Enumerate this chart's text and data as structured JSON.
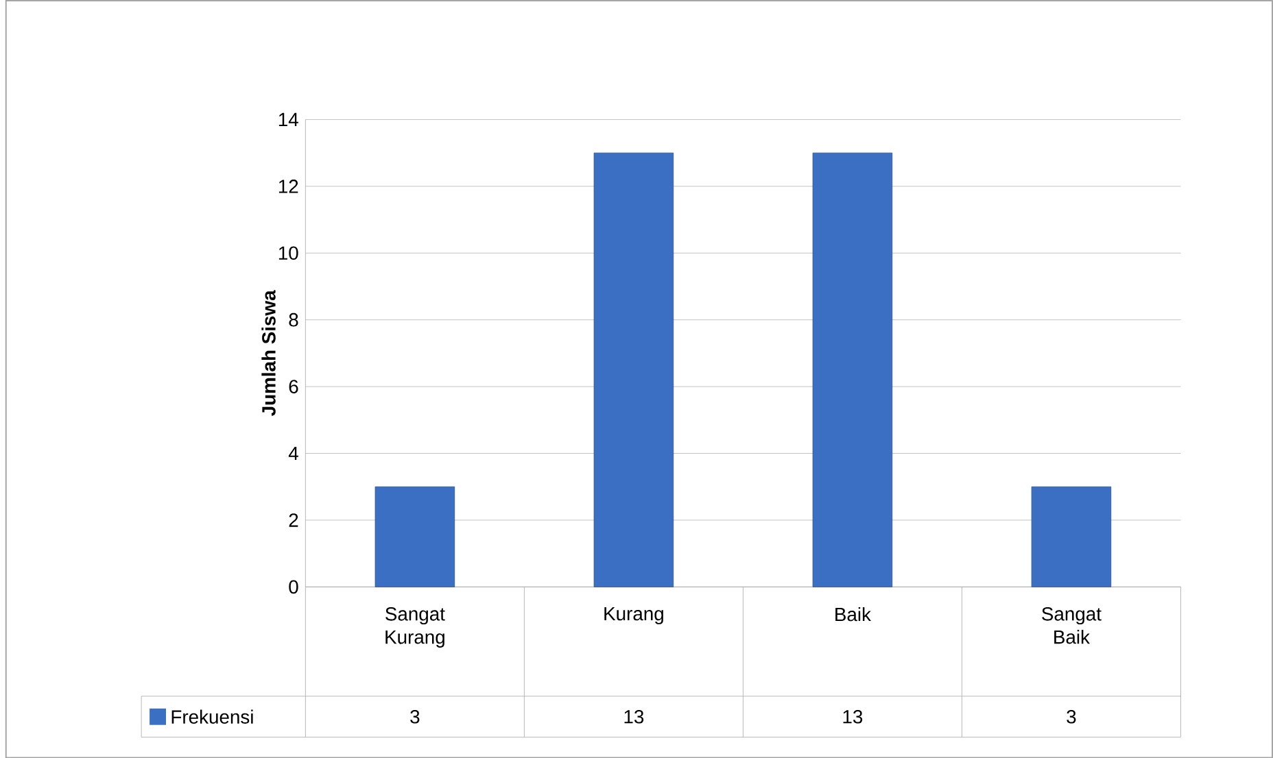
{
  "chart_data": {
    "type": "bar",
    "ylabel": "Jumlah Siswa",
    "categories": [
      "Sangat Kurang",
      "Kurang",
      "Baik",
      "Sangat Baik"
    ],
    "series": [
      {
        "name": "Frekuensi",
        "color": "#3a6fc4",
        "values": [
          3,
          13,
          13,
          3
        ]
      }
    ],
    "ylim": [
      0,
      14
    ],
    "yticks": [
      0,
      2,
      4,
      6,
      8,
      10,
      12,
      14
    ],
    "grid": "y",
    "data_labels": true,
    "legend": "bottom"
  }
}
